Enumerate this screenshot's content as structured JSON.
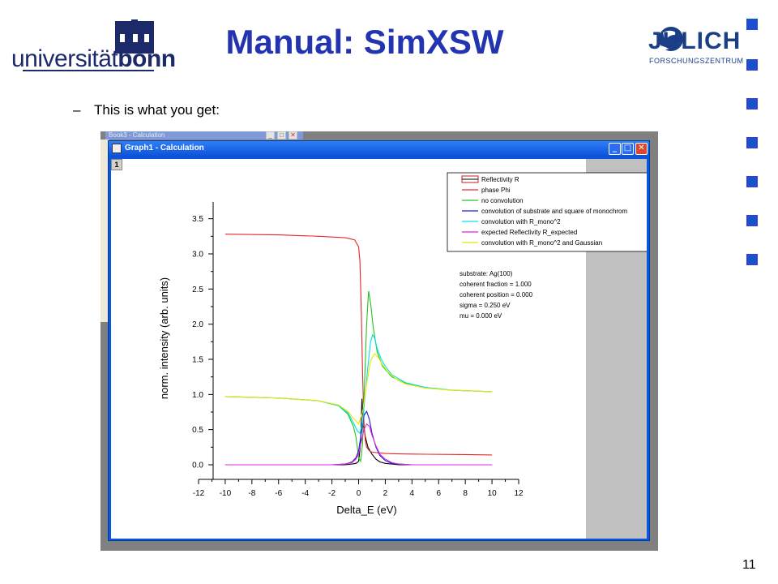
{
  "header": {
    "logo_left_text_prefix": "universität",
    "logo_left_text_suffix": "bonn",
    "title": "Manual: SimXSW",
    "logo_right_name": "JÜLICH",
    "logo_right_sub": "FORSCHUNGSZENTRUM"
  },
  "content": {
    "bullet_dash": "–",
    "bullet_text": "This is what you get:"
  },
  "page_number": "11",
  "app": {
    "back_window_title": "Book3 - Calculation",
    "graph_window_title": "Graph1 - Calculation",
    "layer_label": "1",
    "minimize_glyph": "_",
    "maximize_glyph": "□",
    "close_glyph": "✕"
  },
  "colors": {
    "title_blue": "#2334b0",
    "accent_square": "#1e4fcf",
    "window_blue": "#0a56e0"
  },
  "chart_data": {
    "type": "line",
    "xlabel": "Delta_E (eV)",
    "ylabel": "norm. intensity (arb. units)",
    "xlim": [
      -12,
      12
    ],
    "ylim": [
      0,
      3.6
    ],
    "x_ticks": [
      "-12",
      "-10",
      "-8",
      "-6",
      "-4",
      "-2",
      "0",
      "2",
      "4",
      "6",
      "8",
      "10",
      "12"
    ],
    "y_ticks": [
      "0.0",
      "0.5",
      "1.0",
      "1.5",
      "2.0",
      "2.5",
      "3.0",
      "3.5"
    ],
    "legend_position": "top-right",
    "legend": [
      {
        "name": "Reflectivity R",
        "color": "#000000"
      },
      {
        "name": "phase Phi",
        "color": "#e8262a"
      },
      {
        "name": "no convolution",
        "color": "#22c322"
      },
      {
        "name": "convolution of substrate and square of monochrom",
        "color": "#2020d0"
      },
      {
        "name": "convolution with R_mono^2",
        "color": "#00e0e8"
      },
      {
        "name": "expected Reflectivity R_expected",
        "color": "#e020e0"
      },
      {
        "name": "convolution with R_mono^2 and Gaussian",
        "color": "#e8e800"
      }
    ],
    "annotation": [
      "substrate: Ag(100)",
      "coherent fraction = 1.000",
      "coherent position = 0.000",
      "sigma = 0.250 eV",
      "mu = 0.000 eV"
    ],
    "series": [
      {
        "name": "Reflectivity R",
        "x": [
          -10,
          -1,
          -0.5,
          -0.2,
          0,
          0.15,
          0.25,
          0.35,
          0.5,
          0.7,
          1,
          1.3,
          1.6,
          2,
          2.5,
          3,
          4,
          10
        ],
        "y": [
          0,
          0,
          0.01,
          0.02,
          0.05,
          0.3,
          0.94,
          0.6,
          0.4,
          0.25,
          0.15,
          0.08,
          0.04,
          0.02,
          0.01,
          0,
          0,
          0
        ]
      },
      {
        "name": "phase Phi",
        "x": [
          -10,
          -6,
          -3,
          -1,
          -0.3,
          0,
          0.1,
          0.2,
          0.3,
          0.4,
          0.5,
          0.6,
          0.8,
          1,
          1.5,
          2,
          3,
          5,
          8,
          10
        ],
        "y": [
          3.28,
          3.27,
          3.25,
          3.23,
          3.2,
          3.1,
          2.9,
          2.2,
          1.3,
          0.6,
          0.35,
          0.25,
          0.2,
          0.18,
          0.17,
          0.16,
          0.155,
          0.15,
          0.145,
          0.14
        ]
      },
      {
        "name": "no convolution",
        "x": [
          -10,
          -6,
          -3,
          -1.5,
          -0.8,
          -0.4,
          -0.2,
          0,
          0.15,
          0.3,
          0.45,
          0.6,
          0.75,
          0.9,
          1.1,
          1.4,
          1.8,
          2.5,
          3.5,
          5,
          7,
          10
        ],
        "y": [
          0.97,
          0.95,
          0.91,
          0.84,
          0.72,
          0.55,
          0.4,
          0.1,
          0.05,
          0.3,
          1.2,
          2.0,
          2.47,
          2.3,
          1.95,
          1.6,
          1.4,
          1.25,
          1.16,
          1.1,
          1.06,
          1.04
        ]
      },
      {
        "name": "convolution of substrate and square of monochrom",
        "x": [
          -10,
          -2,
          -1,
          -0.5,
          -0.2,
          0,
          0.2,
          0.4,
          0.6,
          0.8,
          1.0,
          1.3,
          1.6,
          2,
          2.5,
          3,
          4,
          10
        ],
        "y": [
          0,
          0,
          0.01,
          0.04,
          0.1,
          0.2,
          0.45,
          0.7,
          0.76,
          0.65,
          0.45,
          0.25,
          0.13,
          0.06,
          0.02,
          0.01,
          0,
          0
        ]
      },
      {
        "name": "convolution with R_mono^2",
        "x": [
          -10,
          -6,
          -3,
          -1.5,
          -0.8,
          -0.4,
          -0.1,
          0.1,
          0.3,
          0.5,
          0.7,
          0.9,
          1.05,
          1.2,
          1.4,
          1.7,
          2,
          2.5,
          3.5,
          5,
          7,
          10
        ],
        "y": [
          0.97,
          0.95,
          0.91,
          0.84,
          0.74,
          0.6,
          0.48,
          0.45,
          0.6,
          1.0,
          1.4,
          1.75,
          1.85,
          1.8,
          1.65,
          1.5,
          1.4,
          1.28,
          1.17,
          1.1,
          1.06,
          1.04
        ]
      },
      {
        "name": "expected Reflectivity R_expected",
        "x": [
          -10,
          -2,
          -1,
          -0.5,
          -0.2,
          0,
          0.2,
          0.4,
          0.6,
          0.8,
          1.0,
          1.3,
          1.6,
          2,
          2.5,
          3,
          4,
          10
        ],
        "y": [
          0,
          0,
          0.01,
          0.03,
          0.08,
          0.15,
          0.33,
          0.5,
          0.58,
          0.55,
          0.42,
          0.27,
          0.15,
          0.08,
          0.03,
          0.01,
          0,
          0
        ]
      },
      {
        "name": "convolution with R_mono^2 and Gaussian",
        "x": [
          -10,
          -6,
          -3,
          -1.5,
          -0.8,
          -0.4,
          0,
          0.3,
          0.6,
          0.9,
          1.2,
          1.5,
          1.8,
          2.2,
          2.8,
          3.5,
          5,
          7,
          10
        ],
        "y": [
          0.97,
          0.95,
          0.91,
          0.85,
          0.76,
          0.66,
          0.58,
          0.75,
          1.15,
          1.48,
          1.58,
          1.52,
          1.42,
          1.32,
          1.22,
          1.15,
          1.09,
          1.06,
          1.04
        ]
      }
    ]
  }
}
